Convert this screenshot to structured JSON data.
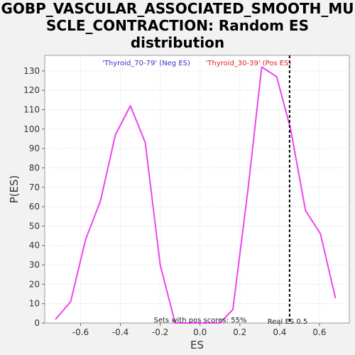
{
  "title_lines": [
    "GOBP_VASCULAR_ASSOCIATED_SMOOTH_MU",
    "SCLE_CONTRACTION: Random ES",
    "distribution"
  ],
  "colors": {
    "curve": "#ee44ee",
    "neg_label": "#3333cc",
    "pos_label": "#dd2222",
    "real_es_line": "#000000",
    "grid": "#e4e4e4"
  },
  "chart_data": {
    "type": "line",
    "xlabel": "ES",
    "ylabel": "P(ES)",
    "xlim": [
      -0.78,
      0.75
    ],
    "ylim": [
      0,
      138
    ],
    "xticks": [
      -0.6,
      -0.4,
      -0.2,
      0.0,
      0.2,
      0.4,
      0.6
    ],
    "xtick_labels": [
      "-0.6",
      "-0.4",
      "-0.2",
      "0.0",
      "0.2",
      "0.4",
      "0.6"
    ],
    "yticks": [
      0,
      10,
      20,
      30,
      40,
      50,
      60,
      70,
      80,
      90,
      100,
      110,
      120,
      130
    ],
    "ytick_labels": [
      "0",
      "10",
      "20",
      "30",
      "40",
      "50",
      "60",
      "70",
      "80",
      "90",
      "100",
      "110",
      "120",
      "130"
    ],
    "grid": true,
    "series": [
      {
        "x": [
          -0.725,
          -0.65,
          -0.575,
          -0.5,
          -0.425,
          -0.35,
          -0.275,
          -0.2,
          -0.125,
          -0.05,
          0.025,
          0.1,
          0.165,
          0.24,
          0.31,
          0.385,
          0.455,
          0.53,
          0.605,
          0.68
        ],
        "y": [
          2,
          11,
          43,
          63,
          97,
          112,
          93,
          30,
          0,
          0,
          0,
          0,
          7,
          68,
          132,
          127,
          100,
          58,
          46,
          13
        ]
      }
    ],
    "real_es": 0.45,
    "annotations": {
      "neg_label": "'Thyroid_70-79' (Neg ES)",
      "pos_label": "'Thyroid_30-39' (Pos ES)",
      "pos_scores": "Sets with pos scores: 55%",
      "real_es_label": "Real ES 0.5"
    }
  }
}
